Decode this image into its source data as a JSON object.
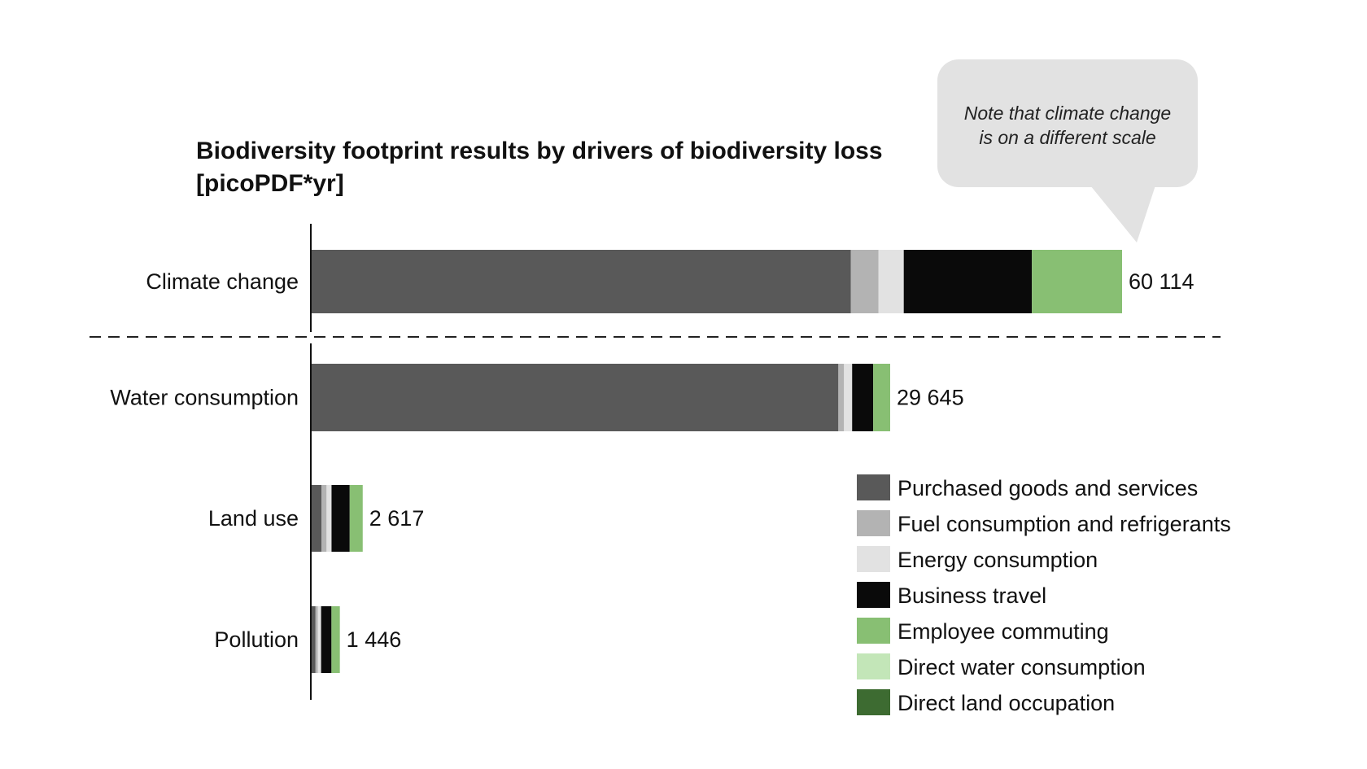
{
  "chart_data": {
    "type": "bar",
    "orientation": "horizontal",
    "stacked": true,
    "title": "Biodiversity footprint results by drivers of biodiversity loss",
    "title_line2": "[picoPDF*yr]",
    "annotation": [
      "Note that climate change",
      "is on a different scale"
    ],
    "categories": [
      "Climate change",
      "Water consumption",
      "Land use",
      "Pollution"
    ],
    "totals": [
      "60 114",
      "29 645",
      "2 617",
      "1 446"
    ],
    "series": [
      {
        "name": "Purchased goods and services",
        "color": "#595959",
        "values": [
          40000,
          26990,
          510,
          200
        ]
      },
      {
        "name": "Fuel consumption and refrigerants",
        "color": "#b3b3b3",
        "values": [
          2050,
          290,
          255,
          115
        ]
      },
      {
        "name": "Energy consumption",
        "color": "#e2e2e2",
        "values": [
          1870,
          415,
          255,
          170
        ]
      },
      {
        "name": "Business travel",
        "color": "#0a0a0a",
        "values": [
          9504,
          1080,
          930,
          530
        ]
      },
      {
        "name": "Employee commuting",
        "color": "#88bf73",
        "values": [
          6690,
          870,
          667,
          431
        ]
      },
      {
        "name": "Direct water consumption",
        "color": "#c3e6b8",
        "values": [
          0,
          0,
          0,
          0
        ]
      },
      {
        "name": "Direct land occupation",
        "color": "#3d6b31",
        "values": [
          0,
          0,
          0,
          0
        ]
      }
    ],
    "separate_scale_categories": [
      "Climate change"
    ],
    "legend_position": "bottom-right",
    "grid": false
  }
}
